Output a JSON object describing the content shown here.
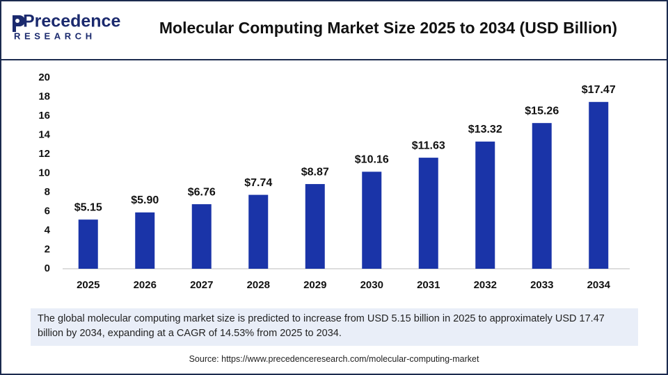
{
  "logo": {
    "name": "Precedence",
    "tagline": "RESEARCH"
  },
  "chart_data": {
    "type": "bar",
    "title": "Molecular Computing Market Size 2025 to 2034 (USD Billion)",
    "categories": [
      "2025",
      "2026",
      "2027",
      "2028",
      "2029",
      "2030",
      "2031",
      "2032",
      "2033",
      "2034"
    ],
    "values": [
      5.15,
      5.9,
      6.76,
      7.74,
      8.87,
      10.16,
      11.63,
      13.32,
      15.26,
      17.47
    ],
    "value_labels": [
      "$5.15",
      "$5.90",
      "$6.76",
      "$7.74",
      "$8.87",
      "$10.16",
      "$11.63",
      "$13.32",
      "$15.26",
      "$17.47"
    ],
    "color": "#1a34a8",
    "ylim": [
      0,
      20
    ],
    "yticks": [
      0,
      2,
      4,
      6,
      8,
      10,
      12,
      14,
      16,
      18,
      20
    ],
    "grid": false
  },
  "summary": "The global molecular computing market size is predicted to increase from USD 5.15 billion in 2025 to approximately USD 17.47 billion by 2034, expanding at a CAGR of 14.53% from 2025 to 2034.",
  "source": "Source: https://www.precedenceresearch.com/molecular-computing-market"
}
